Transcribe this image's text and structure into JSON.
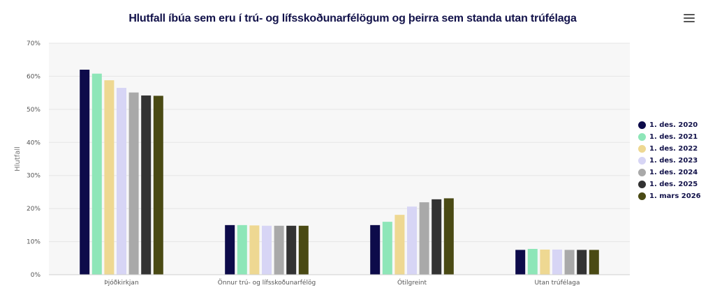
{
  "title": "Hlutfall íbúa sem eru í trú- og lífsskoðunarfélögum og þeirra sem standa utan trúfélaga",
  "menu": {
    "icon": "hamburger-menu-icon"
  },
  "chart_data": {
    "type": "bar",
    "title": "Hlutfall íbúa sem eru í trú- og lífsskoðunarfélögum og þeirra sem standa utan trúfélaga",
    "xlabel": "",
    "ylabel": "Hlutfall",
    "ylim": [
      0,
      70
    ],
    "yticks": [
      0,
      10,
      20,
      30,
      40,
      50,
      60,
      70
    ],
    "ytick_labels": [
      "0%",
      "10%",
      "20%",
      "30%",
      "40%",
      "50%",
      "60%",
      "70%"
    ],
    "grid": true,
    "legend_position": "right",
    "categories": [
      "Þjóðkirkjan",
      "Önnur trú- og lífsskoðunarfélög",
      "Ótilgreint",
      "Utan trúfélaga"
    ],
    "series": [
      {
        "name": "1. des. 2020",
        "color": "#0d0b4a",
        "values": [
          62.0,
          15.0,
          15.0,
          7.5
        ]
      },
      {
        "name": "1. des. 2021",
        "color": "#8ee6b8",
        "values": [
          60.8,
          15.0,
          16.0,
          7.8
        ]
      },
      {
        "name": "1. des. 2022",
        "color": "#eed892",
        "values": [
          58.8,
          14.9,
          18.1,
          7.6
        ]
      },
      {
        "name": "1. des. 2023",
        "color": "#d7d5f5",
        "values": [
          56.5,
          14.8,
          20.6,
          7.6
        ]
      },
      {
        "name": "1. des. 2024",
        "color": "#a9a9a9",
        "values": [
          55.1,
          14.8,
          21.9,
          7.5
        ]
      },
      {
        "name": "1. des. 2025",
        "color": "#333333",
        "values": [
          54.2,
          14.8,
          22.8,
          7.5
        ]
      },
      {
        "name": "1. mars 2026",
        "color": "#4a4a14",
        "values": [
          54.1,
          14.8,
          23.1,
          7.5
        ]
      }
    ]
  }
}
